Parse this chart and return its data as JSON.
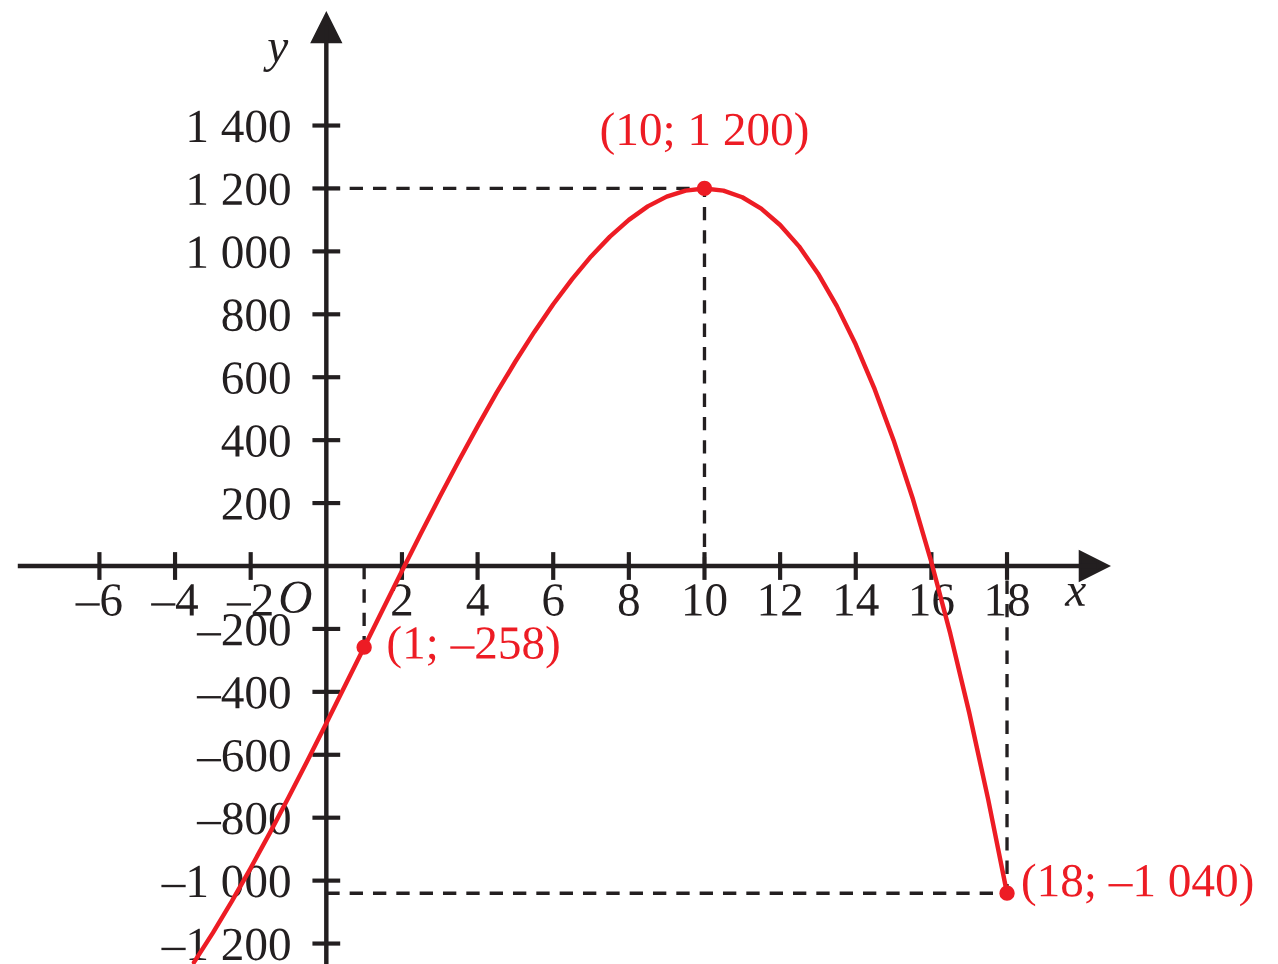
{
  "chart_data": {
    "type": "line",
    "xlabel": "x",
    "ylabel": "y",
    "xlim": [
      -8.1,
      20.3
    ],
    "ylim": [
      -1265,
      1710
    ],
    "xticks": [
      {
        "value": -6,
        "label": "–6"
      },
      {
        "value": -4,
        "label": "–4"
      },
      {
        "value": -2,
        "label": "–2"
      },
      2,
      4,
      6,
      8,
      10,
      12,
      14,
      16,
      18
    ],
    "yticks": [
      {
        "value": -1200,
        "label": "–1 200"
      },
      {
        "value": -1000,
        "label": "–1 000"
      },
      {
        "value": -800,
        "label": "–800"
      },
      {
        "value": -600,
        "label": "–600"
      },
      {
        "value": -400,
        "label": "–400"
      },
      {
        "value": -200,
        "label": "–200"
      },
      200,
      400,
      600,
      800,
      {
        "value": 1000,
        "label": "1 000"
      },
      {
        "value": 1200,
        "label": "1 200"
      },
      {
        "value": 1400,
        "label": "1 400"
      }
    ],
    "series": [
      {
        "color": "#231f20",
        "line_style": "dashed",
        "marker": "none",
        "x": [
          0,
          10,
          10
        ],
        "values": [
          1200,
          1200,
          0
        ]
      },
      {
        "color": "#231f20",
        "line_style": "dashed",
        "marker": "none",
        "x": [
          1,
          1
        ],
        "values": [
          0,
          -258
        ]
      },
      {
        "color": "#231f20",
        "line_style": "dashed",
        "marker": "none",
        "x": [
          0,
          18,
          18
        ],
        "values": [
          -1040,
          -1040,
          0
        ]
      },
      {
        "color": "#ed1c24",
        "line_style": "solid",
        "marker": "none",
        "x": [
          -3.5,
          -3,
          -2.5,
          -2,
          -1.5,
          -1,
          -0.5,
          0,
          0.5,
          1,
          1.5,
          2,
          2.5,
          3,
          3.5,
          4,
          4.5,
          5,
          5.5,
          6,
          6.5,
          7,
          7.5,
          8,
          8.5,
          9,
          9.5,
          10,
          10.5,
          11,
          11.5,
          12,
          12.5,
          13,
          13.5,
          14,
          14.5,
          15,
          15.5,
          16,
          16.5,
          17,
          17.5,
          18
        ],
        "values": [
          -1260,
          -1166,
          -1066,
          -960,
          -850,
          -736,
          -619,
          -500,
          -379,
          -258,
          -137,
          -16,
          103,
          220,
          334,
          444,
          550,
          650,
          744,
          832,
          912,
          984,
          1047,
          1100,
          1143,
          1174,
          1193,
          1200,
          1193,
          1172,
          1136,
          1084,
          1016,
          930,
          826,
          704,
          562,
          400,
          217,
          12,
          -215,
          -466,
          -741,
          -1040
        ]
      },
      {
        "type": "scatter",
        "color": "#ed1c24",
        "marker": "circle",
        "x": [
          1,
          10,
          18
        ],
        "values": [
          -258,
          1200,
          -1040
        ]
      }
    ],
    "annotations": [
      {
        "text": "(10; 1 200)",
        "x": 10,
        "y": 1200
      },
      {
        "text": "(1; –258)",
        "x": 1,
        "y": -258
      },
      {
        "text": "(18; –1 040)",
        "x": 18,
        "y": -1040
      },
      "O"
    ]
  }
}
